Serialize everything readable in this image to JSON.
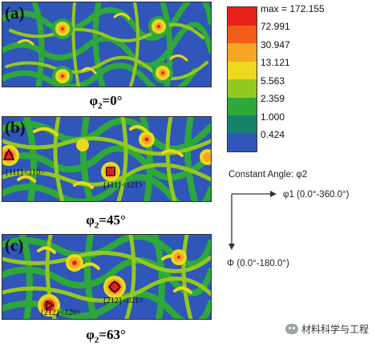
{
  "panels": [
    {
      "label": "(a)",
      "caption_main": "φ",
      "caption_sub": "2",
      "caption_rest": "=0°",
      "annotations": []
    },
    {
      "label": "(b)",
      "caption_main": "φ",
      "caption_sub": "2",
      "caption_rest": "=45°",
      "annotations": [
        "{111}<110>",
        "{111}<121>"
      ]
    },
    {
      "label": "(c)",
      "caption_main": "φ",
      "caption_sub": "2",
      "caption_rest": "=63°",
      "annotations": [
        "{212}<021>",
        "{212}<120>"
      ]
    }
  ],
  "legend": {
    "colors": [
      "#e8211c",
      "#f25d18",
      "#f6a623",
      "#ecd81d",
      "#93c81f",
      "#2ea83a",
      "#17826a",
      "#2f56b8"
    ],
    "labels": [
      "max = 172.155",
      "72.991",
      "30.947",
      "13.121",
      "5.563",
      "2.359",
      "1.000",
      "0.424"
    ]
  },
  "axes": {
    "title": "Constant Angle: φ2",
    "x_label": "φ1 (0.0°-360.0°)",
    "y_label": "Φ (0.0°-180.0°)"
  },
  "footer": {
    "text": "材料科学与工程"
  }
}
